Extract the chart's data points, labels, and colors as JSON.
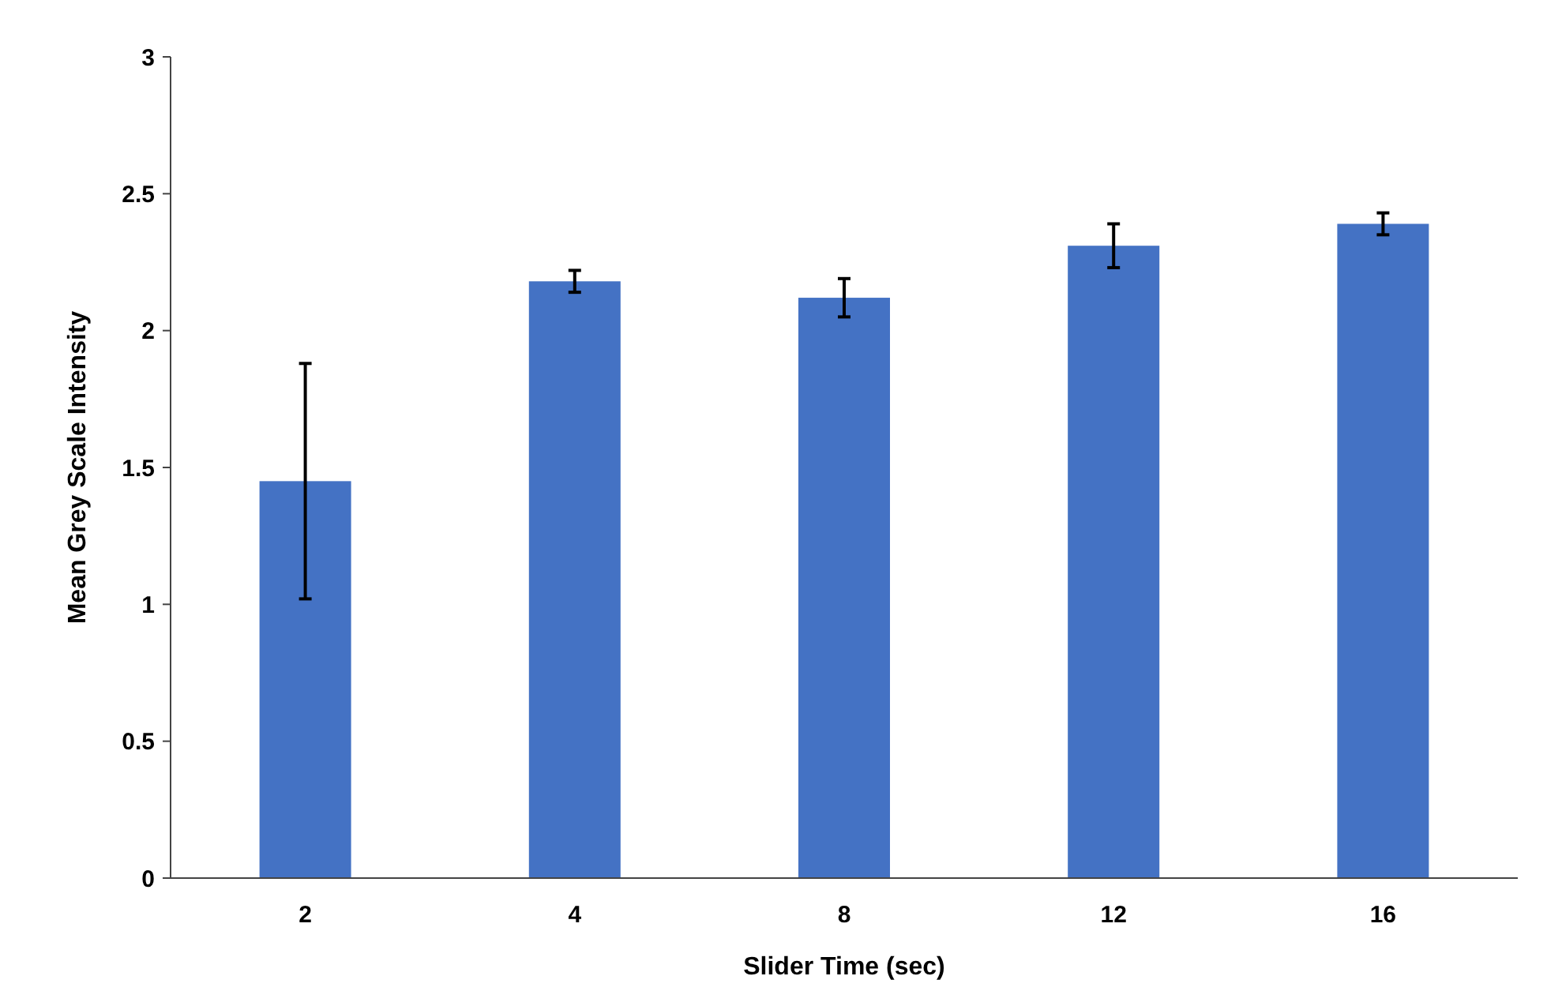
{
  "chart_data": {
    "type": "bar",
    "xlabel": "Slider Time (sec)",
    "ylabel": "Mean Grey Scale Intensity",
    "categories": [
      "2",
      "4",
      "8",
      "12",
      "16"
    ],
    "values": [
      1.45,
      2.18,
      2.12,
      2.31,
      2.39
    ],
    "errors": [
      0.43,
      0.04,
      0.07,
      0.08,
      0.04
    ],
    "color": "#4472c4",
    "ylim": [
      0,
      3
    ],
    "yticks": [
      0,
      0.5,
      1,
      1.5,
      2,
      2.5,
      3
    ],
    "grid": false
  }
}
